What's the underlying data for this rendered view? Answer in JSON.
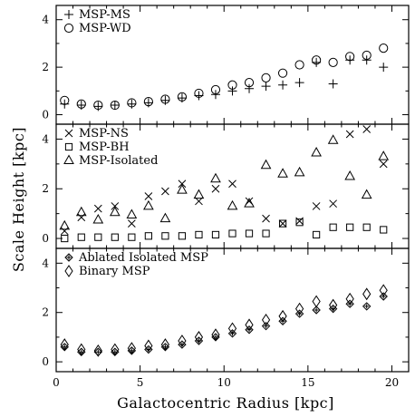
{
  "chart_data": [
    {
      "type": "scatter",
      "xlim": [
        0,
        21
      ],
      "ylim": [
        -0.4,
        4.6
      ],
      "yticks": [
        0,
        2,
        4
      ],
      "grid": false,
      "legend_position": "top-left",
      "series": [
        {
          "name": "MSP-MS",
          "marker": "plus",
          "x": [
            0.5,
            1.5,
            2.5,
            3.5,
            4.5,
            5.5,
            6.5,
            7.5,
            8.5,
            9.5,
            10.5,
            11.5,
            12.5,
            13.5,
            14.5,
            15.5,
            16.5,
            17.5,
            18.5,
            19.5
          ],
          "y": [
            0.45,
            0.4,
            0.35,
            0.4,
            0.45,
            0.5,
            0.6,
            0.7,
            0.8,
            0.85,
            1.0,
            1.1,
            1.2,
            1.25,
            1.35,
            2.2,
            1.3,
            2.3,
            2.3,
            2.0
          ]
        },
        {
          "name": "MSP-WD",
          "marker": "circle",
          "x": [
            0.5,
            1.5,
            2.5,
            3.5,
            4.5,
            5.5,
            6.5,
            7.5,
            8.5,
            9.5,
            10.5,
            11.5,
            12.5,
            13.5,
            14.5,
            15.5,
            16.5,
            17.5,
            18.5,
            19.5
          ],
          "y": [
            0.6,
            0.45,
            0.4,
            0.4,
            0.5,
            0.55,
            0.65,
            0.75,
            0.9,
            1.05,
            1.25,
            1.35,
            1.55,
            1.75,
            2.1,
            2.3,
            2.2,
            2.45,
            2.5,
            2.8
          ]
        }
      ]
    },
    {
      "type": "scatter",
      "xlim": [
        0,
        21
      ],
      "ylim": [
        -0.4,
        4.6
      ],
      "yticks": [
        0,
        2,
        4
      ],
      "grid": false,
      "legend_position": "top-left",
      "series": [
        {
          "name": "MSP-NS",
          "marker": "cross",
          "x": [
            0.5,
            1.5,
            2.5,
            3.5,
            4.5,
            5.5,
            6.5,
            7.5,
            8.5,
            9.5,
            10.5,
            11.5,
            12.5,
            13.5,
            14.5,
            15.5,
            16.5,
            17.5,
            18.5,
            19.5
          ],
          "y": [
            0.3,
            0.85,
            1.2,
            1.3,
            0.6,
            1.7,
            1.9,
            2.2,
            1.5,
            2.0,
            2.2,
            1.5,
            0.8,
            0.6,
            0.7,
            1.3,
            1.4,
            4.2,
            4.4,
            3.0
          ]
        },
        {
          "name": "MSP-BH",
          "marker": "square",
          "x": [
            0.5,
            1.5,
            2.5,
            3.5,
            4.5,
            5.5,
            6.5,
            7.5,
            8.5,
            9.5,
            10.5,
            11.5,
            12.5,
            13.5,
            14.5,
            15.5,
            16.5,
            17.5,
            18.5,
            19.5
          ],
          "y": [
            0.0,
            0.05,
            0.05,
            0.05,
            0.05,
            0.1,
            0.1,
            0.1,
            0.15,
            0.15,
            0.2,
            0.2,
            0.2,
            0.6,
            0.65,
            0.15,
            0.45,
            0.45,
            0.45,
            0.35
          ]
        },
        {
          "name": "MSP-Isolated",
          "marker": "triangle",
          "x": [
            0.5,
            1.5,
            2.5,
            3.5,
            4.5,
            5.5,
            6.5,
            7.5,
            8.5,
            9.5,
            10.5,
            11.5,
            12.5,
            13.5,
            14.5,
            15.5,
            16.5,
            17.5,
            18.5,
            19.5
          ],
          "y": [
            0.5,
            1.05,
            0.75,
            1.05,
            0.95,
            1.3,
            0.8,
            1.95,
            1.75,
            2.4,
            1.3,
            1.4,
            2.95,
            2.6,
            2.65,
            3.45,
            3.95,
            2.5,
            1.75,
            3.3
          ]
        }
      ]
    },
    {
      "type": "scatter",
      "xlim": [
        0,
        21
      ],
      "ylim": [
        -0.4,
        4.6
      ],
      "yticks": [
        0,
        2,
        4
      ],
      "xticks": [
        0,
        5,
        10,
        15,
        20
      ],
      "grid": false,
      "legend_position": "top-left",
      "series": [
        {
          "name": "Ablated Isolated MSP",
          "marker": "circle-plus",
          "x": [
            0.5,
            1.5,
            2.5,
            3.5,
            4.5,
            5.5,
            6.5,
            7.5,
            8.5,
            9.5,
            10.5,
            11.5,
            12.5,
            13.5,
            14.5,
            15.5,
            16.5,
            17.5,
            18.5,
            19.5
          ],
          "y": [
            0.6,
            0.4,
            0.4,
            0.4,
            0.45,
            0.5,
            0.6,
            0.7,
            0.85,
            1.0,
            1.15,
            1.3,
            1.45,
            1.65,
            1.95,
            2.1,
            2.15,
            2.35,
            2.25,
            2.65
          ]
        },
        {
          "name": "Binary MSP",
          "marker": "diamond",
          "x": [
            0.5,
            1.5,
            2.5,
            3.5,
            4.5,
            5.5,
            6.5,
            7.5,
            8.5,
            9.5,
            10.5,
            11.5,
            12.5,
            13.5,
            14.5,
            15.5,
            16.5,
            17.5,
            18.5,
            19.5
          ],
          "y": [
            0.7,
            0.5,
            0.45,
            0.5,
            0.55,
            0.65,
            0.7,
            0.85,
            1.0,
            1.1,
            1.35,
            1.5,
            1.7,
            1.85,
            2.15,
            2.45,
            2.3,
            2.55,
            2.75,
            2.9
          ]
        }
      ]
    }
  ],
  "shared": {
    "xlabel": "Galactocentric Radius [kpc]",
    "ylabel": "Scale Height [kpc]",
    "xlim": [
      0,
      21
    ],
    "xticks": [
      0,
      5,
      10,
      15,
      20
    ]
  }
}
